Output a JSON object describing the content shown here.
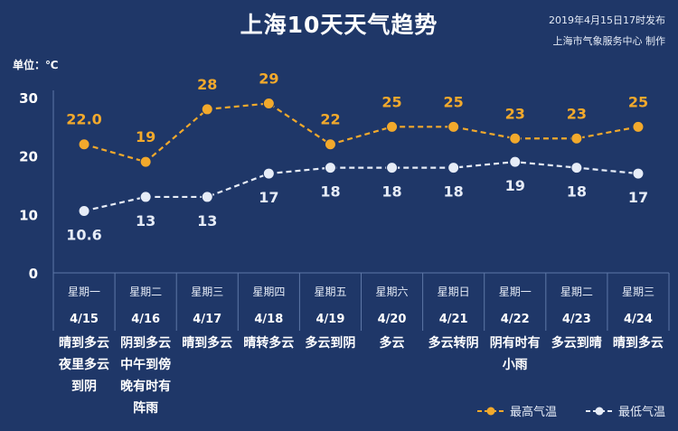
{
  "header": {
    "title": "上海10天天气趋势",
    "publish_time": "2019年4月15日17时发布",
    "maker": "上海市气象服务中心  制作"
  },
  "unit_label": "单位：℃",
  "colors": {
    "background": "#1f3768",
    "high": "#f2a92c",
    "low": "#e6ecf7",
    "table_line": "#5e77a7"
  },
  "chart_data": {
    "type": "line",
    "title": "上海10天天气趋势",
    "ylabel": "单位：℃",
    "ylim": [
      0,
      30
    ],
    "yticks": [
      0,
      10,
      20,
      30
    ],
    "weekdays": [
      "星期一",
      "星期二",
      "星期三",
      "星期四",
      "星期五",
      "星期六",
      "星期日",
      "星期一",
      "星期二",
      "星期三"
    ],
    "categories": [
      "4/15",
      "4/16",
      "4/17",
      "4/18",
      "4/19",
      "4/20",
      "4/21",
      "4/22",
      "4/23",
      "4/24"
    ],
    "series": [
      {
        "name": "最高气温",
        "values": [
          22.0,
          19,
          28,
          29,
          22,
          25,
          25,
          23,
          23,
          25
        ],
        "labels": [
          "22.0",
          "19",
          "28",
          "29",
          "22",
          "25",
          "25",
          "23",
          "23",
          "25"
        ]
      },
      {
        "name": "最低气温",
        "values": [
          10.6,
          13,
          13,
          17,
          18,
          18,
          18,
          19,
          18,
          17
        ],
        "labels": [
          "10.6",
          "13",
          "13",
          "17",
          "18",
          "18",
          "18",
          "19",
          "18",
          "17"
        ]
      }
    ],
    "descriptions": [
      "晴到多云\n夜里多云\n到阴",
      "阴到多云\n中午到傍\n晚有时有\n阵雨",
      "晴到多云",
      "晴转多云",
      "多云到阴",
      "多云",
      "多云转阴",
      "阴有时有\n小雨",
      "多云到晴",
      "晴到多云"
    ],
    "grid": false,
    "legend": "bottom-right"
  }
}
